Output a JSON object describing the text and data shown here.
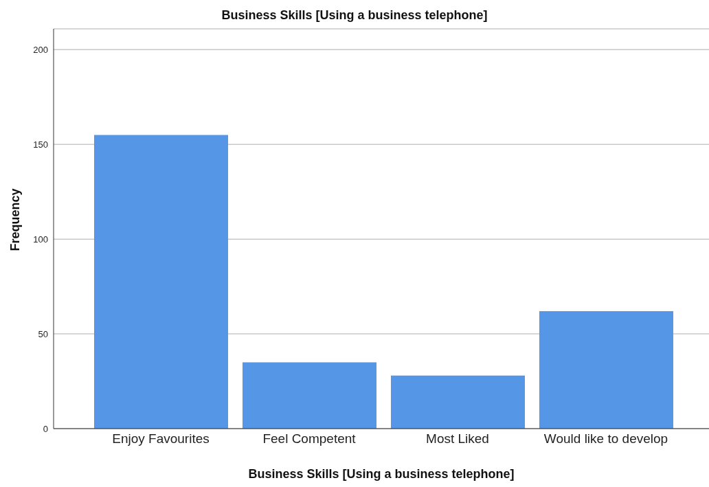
{
  "chart_data": {
    "type": "bar",
    "title": "Business Skills [Using a business telephone]",
    "xlabel": "Business Skills [Using a business telephone]",
    "ylabel": "Frequency",
    "categories": [
      "Enjoy Favourites",
      "Feel Competent",
      "Most Liked",
      "Would like to develop"
    ],
    "values": [
      155,
      35,
      28,
      62
    ],
    "color": "#5596e6",
    "ylim": [
      0,
      211
    ],
    "yticks": [
      0,
      50,
      100,
      150,
      200
    ],
    "grid": "y"
  }
}
